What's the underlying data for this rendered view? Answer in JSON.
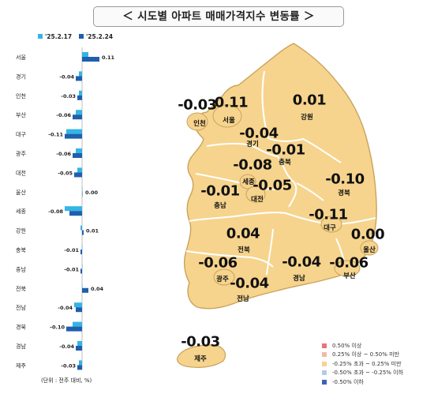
{
  "title": "＜ 시도별 아파트 매매가격지수 변동률 ＞",
  "unit_note": "(단위 : 전주 대비, %)",
  "colors": {
    "prev_week": "#33b5e5",
    "this_week": "#1f5fad",
    "map_fill": "#f6d48d",
    "map_border": "#ffffff"
  },
  "chart_data": {
    "type": "bar",
    "orientation": "horizontal",
    "categories": [
      "서울",
      "경기",
      "인천",
      "부산",
      "대구",
      "광주",
      "대전",
      "울산",
      "세종",
      "강원",
      "충북",
      "충남",
      "전북",
      "전남",
      "경북",
      "경남",
      "제주"
    ],
    "series": [
      {
        "name": "'25.2.17",
        "values": [
          0.04,
          -0.02,
          -0.02,
          -0.04,
          -0.1,
          -0.04,
          -0.03,
          0.0,
          -0.11,
          -0.01,
          0.0,
          0.0,
          0.0,
          -0.05,
          -0.06,
          -0.03,
          -0.02
        ]
      },
      {
        "name": "'25.2.24",
        "values": [
          0.11,
          -0.04,
          -0.03,
          -0.06,
          -0.11,
          -0.06,
          -0.05,
          0.0,
          -0.08,
          0.01,
          -0.01,
          -0.01,
          0.04,
          -0.04,
          -0.1,
          -0.04,
          -0.03
        ]
      }
    ],
    "data_labels": [
      "0.11",
      "-0.04",
      "-0.03",
      "-0.06",
      "-0.11",
      "-0.06",
      "-0.05",
      "0.00",
      "-0.08",
      "0.01",
      "-0.01",
      "-0.01",
      "0.04",
      "-0.04",
      "-0.10",
      "-0.04",
      "-0.03"
    ],
    "xlim": [
      -0.12,
      0.12
    ]
  },
  "map": {
    "regions": [
      {
        "name": "인천",
        "value": "-0.03"
      },
      {
        "name": "서울",
        "value": "0.11"
      },
      {
        "name": "강원",
        "value": "0.01"
      },
      {
        "name": "경기",
        "value": "-0.04"
      },
      {
        "name": "충북",
        "value": "-0.01"
      },
      {
        "name": "세종",
        "value": "-0.08"
      },
      {
        "name": "대전",
        "value": "-0.05"
      },
      {
        "name": "경북",
        "value": "-0.10"
      },
      {
        "name": "충남",
        "value": "-0.01"
      },
      {
        "name": "대구",
        "value": "-0.11"
      },
      {
        "name": "울산",
        "value": "0.00"
      },
      {
        "name": "전북",
        "value": "0.04"
      },
      {
        "name": "광주",
        "value": "-0.06"
      },
      {
        "name": "경남",
        "value": "-0.04"
      },
      {
        "name": "부산",
        "value": "-0.06"
      },
      {
        "name": "전남",
        "value": "-0.04"
      },
      {
        "name": "제주",
        "value": "-0.03"
      }
    ]
  },
  "legend": [
    {
      "label": "0.50% 이상",
      "color": "#e8747c"
    },
    {
      "label": "0.25% 이상 ~ 0.50% 미만",
      "color": "#f3b9a5"
    },
    {
      "label": "-0.25% 초과 ~ 0.25% 미만",
      "color": "#f6d48d"
    },
    {
      "label": "-0.50% 초과 ~ -0.25% 이하",
      "color": "#b9c9e6"
    },
    {
      "label": "-0.50% 이하",
      "color": "#3d63b3"
    }
  ]
}
